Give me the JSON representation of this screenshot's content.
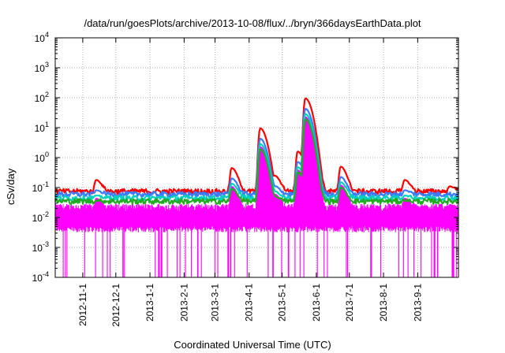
{
  "chart_data": {
    "type": "line",
    "title": "/data/run/goesPlots/archive/2013-10-08/flux/../bryn/366daysEarthData.plot",
    "xlabel": "Coordinated Universal Time (UTC)",
    "ylabel": "cSv/day",
    "yscale": "log",
    "ylim": [
      0.0001,
      10000
    ],
    "xlim": [
      "2012-10-07",
      "2013-10-08"
    ],
    "grid": true,
    "y_ticks": [
      {
        "mantissa": "10",
        "exp": "-4",
        "value": 0.0001
      },
      {
        "mantissa": "10",
        "exp": "-3",
        "value": 0.001
      },
      {
        "mantissa": "10",
        "exp": "-2",
        "value": 0.01
      },
      {
        "mantissa": "10",
        "exp": "-1",
        "value": 0.1
      },
      {
        "mantissa": "10",
        "exp": "0",
        "value": 1
      },
      {
        "mantissa": "10",
        "exp": "1",
        "value": 10
      },
      {
        "mantissa": "10",
        "exp": "2",
        "value": 100
      },
      {
        "mantissa": "10",
        "exp": "3",
        "value": 1000
      },
      {
        "mantissa": "10",
        "exp": "4",
        "value": 10000
      }
    ],
    "x_ticks": [
      "2012-11-1",
      "2012-12-1",
      "2013-1-1",
      "2013-2-1",
      "2013-3-1",
      "2013-4-1",
      "2013-5-1",
      "2013-6-1",
      "2013-7-1",
      "2013-8-1",
      "2013-9-1"
    ],
    "baseline_levels": {
      "red": 0.075,
      "blue": 0.06,
      "cyan": 0.045,
      "green": 0.035,
      "magenta_max": 0.022,
      "magenta_min": 0.004
    },
    "events": [
      {
        "date": "2012-11-13",
        "peak": 0.18
      },
      {
        "date": "2013-3-16",
        "peak": 0.45
      },
      {
        "date": "2013-4-11",
        "peak": 9.5
      },
      {
        "date": "2013-4-22",
        "peak": 0.2
      },
      {
        "date": "2013-4-24",
        "peak": 0.25
      },
      {
        "date": "2013-5-15",
        "peak": 1.6
      },
      {
        "date": "2013-5-22",
        "peak": 95
      },
      {
        "date": "2013-6-23",
        "peak": 0.5
      },
      {
        "date": "2013-8-20",
        "peak": 0.18
      },
      {
        "date": "2013-9-30",
        "peak": 0.11
      }
    ],
    "series": [
      {
        "color": "#ff0000"
      },
      {
        "color": "#3b7bff"
      },
      {
        "color": "#00d0c0"
      },
      {
        "color": "#22aa22"
      },
      {
        "color": "#ff00ff"
      }
    ]
  }
}
